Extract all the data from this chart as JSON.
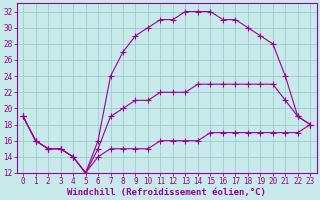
{
  "xlabel": "Windchill (Refroidissement éolien,°C)",
  "bg_color": "#c8eaea",
  "grid_color": "#a0cccc",
  "line_color": "#990099",
  "xlim": [
    -0.5,
    23.5
  ],
  "ylim": [
    12,
    33
  ],
  "xticks": [
    0,
    1,
    2,
    3,
    4,
    5,
    6,
    7,
    8,
    9,
    10,
    11,
    12,
    13,
    14,
    15,
    16,
    17,
    18,
    19,
    20,
    21,
    22,
    23
  ],
  "yticks": [
    12,
    14,
    16,
    18,
    20,
    22,
    24,
    26,
    28,
    30,
    32
  ],
  "curve1_x": [
    0,
    1,
    2,
    3,
    4,
    5,
    6,
    7,
    8,
    9,
    10,
    11,
    12,
    13,
    14,
    15,
    16,
    17,
    18,
    19,
    20,
    21,
    22,
    23
  ],
  "curve1_y": [
    19,
    16,
    15,
    15,
    14,
    12,
    16,
    24,
    27,
    29,
    30,
    31,
    31,
    32,
    32,
    32,
    31,
    31,
    30,
    29,
    28,
    24,
    19,
    18
  ],
  "curve2_x": [
    0,
    1,
    2,
    3,
    4,
    5,
    6,
    7,
    8,
    9,
    10,
    11,
    12,
    13,
    14,
    15,
    16,
    17,
    18,
    19,
    20,
    21,
    22,
    23
  ],
  "curve2_y": [
    19,
    16,
    15,
    15,
    14,
    12,
    15,
    19,
    20,
    21,
    21,
    22,
    22,
    22,
    23,
    23,
    23,
    23,
    23,
    23,
    23,
    21,
    19,
    18
  ],
  "curve3_x": [
    0,
    1,
    2,
    3,
    4,
    5,
    6,
    7,
    8,
    9,
    10,
    11,
    12,
    13,
    14,
    15,
    16,
    17,
    18,
    19,
    20,
    21,
    22,
    23
  ],
  "curve3_y": [
    19,
    16,
    15,
    15,
    14,
    12,
    14,
    15,
    15,
    15,
    15,
    16,
    16,
    16,
    16,
    17,
    17,
    17,
    17,
    17,
    17,
    17,
    17,
    18
  ],
  "xlabel_fontsize": 6.5,
  "tick_fontsize": 5.5
}
